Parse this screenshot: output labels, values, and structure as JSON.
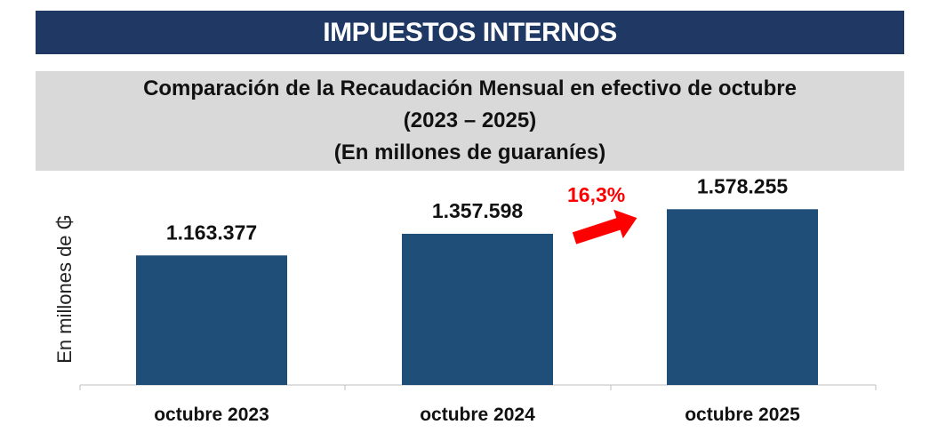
{
  "banner": {
    "title": "IMPUESTOS INTERNOS"
  },
  "subtitle": {
    "line1": "Comparación de la Recaudación Mensual en efectivo de octubre",
    "line2": "(2023 – 2025)",
    "line3": "(En millones de guaraníes)"
  },
  "annotation": {
    "growth": "16,3%"
  },
  "colors": {
    "banner": "#1f3864",
    "bars": "#1f4e79",
    "subtitle_bg": "#d9d9d9",
    "growth": "#ff0000"
  },
  "chart_data": {
    "type": "bar",
    "title": "Comparación de la Recaudación Mensual en efectivo de octubre",
    "ylabel": "En millones de ₲",
    "xlabel": "",
    "categories": [
      "octubre 2023",
      "octubre 2024",
      "octubre 2025"
    ],
    "values": [
      1163377,
      1357598,
      1578255
    ],
    "value_labels": [
      "1.163.377",
      "1.357.598",
      "1.578.255"
    ],
    "ylim": [
      0,
      1900000
    ],
    "grid": false,
    "legend": "none"
  }
}
